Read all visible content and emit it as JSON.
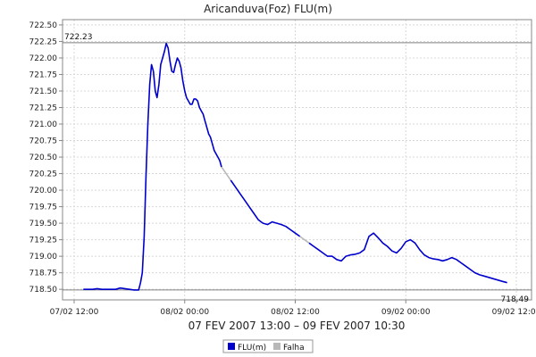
{
  "chart_data": {
    "type": "line",
    "title": "Aricanduva(Foz) FLU(m)",
    "subtitle": "07 FEV 2007 13:00 – 09 FEV 2007 10:30",
    "xlabel": "",
    "ylabel": "",
    "x_ticks": [
      "07/02 12:00",
      "08/02 00:00",
      "08/02 12:00",
      "09/02 00:00",
      "09/02 12:00"
    ],
    "x_tick_hours": [
      0,
      12,
      24,
      36,
      48
    ],
    "xlim_hours": [
      0,
      48
    ],
    "ylim": [
      718.34,
      722.58
    ],
    "y_ticks": [
      718.5,
      718.75,
      719.0,
      719.25,
      719.5,
      719.75,
      720.0,
      720.25,
      720.5,
      720.75,
      721.0,
      721.25,
      721.5,
      721.75,
      722.0,
      722.25,
      722.5
    ],
    "y_tick_labels": [
      "718.50",
      "718.75",
      "719.00",
      "719.25",
      "719.50",
      "719.75",
      "720.00",
      "720.25",
      "720.50",
      "720.75",
      "721.00",
      "721.25",
      "721.50",
      "721.75",
      "722.00",
      "722.25",
      "722.50"
    ],
    "grid": true,
    "legend_position": "bottom",
    "reference_lines": [
      {
        "label": "722.23",
        "value": 722.23,
        "label_side": "left"
      },
      {
        "label": "718.49",
        "value": 718.49,
        "label_side": "right"
      }
    ],
    "series": [
      {
        "name": "FLU(m)",
        "color": "#0000cc",
        "hours": [
          1.0,
          1.5,
          2.0,
          2.5,
          3.0,
          3.5,
          4.0,
          4.5,
          5.0,
          5.5,
          6.0,
          6.5,
          7.0,
          7.2,
          7.4,
          7.6,
          7.8,
          8.0,
          8.2,
          8.4,
          8.6,
          8.8,
          9.0,
          9.2,
          9.4,
          9.6,
          9.8,
          10.0,
          10.2,
          10.4,
          10.6,
          10.8,
          11.0,
          11.2,
          11.4,
          11.6,
          11.8,
          12.0,
          12.2,
          12.4,
          12.6,
          12.8,
          13.0,
          13.2,
          13.4,
          13.6,
          13.8,
          14.0,
          14.2,
          14.4,
          14.6,
          14.8,
          15.0,
          15.2,
          15.4,
          15.6,
          15.8,
          16.0
        ],
        "values": [
          718.5,
          718.5,
          718.5,
          718.51,
          718.5,
          718.5,
          718.5,
          718.5,
          718.52,
          718.51,
          718.5,
          718.49,
          718.49,
          718.6,
          718.75,
          719.3,
          720.2,
          721.0,
          721.6,
          721.9,
          721.8,
          721.5,
          721.4,
          721.6,
          721.9,
          722.0,
          722.1,
          722.22,
          722.15,
          721.95,
          721.8,
          721.78,
          721.9,
          722.0,
          721.95,
          721.85,
          721.65,
          721.5,
          721.4,
          721.35,
          721.3,
          721.3,
          721.38,
          721.38,
          721.35,
          721.25,
          721.2,
          721.15,
          721.05,
          720.95,
          720.85,
          720.8,
          720.7,
          720.6,
          720.55,
          720.5,
          720.45,
          720.35
        ]
      },
      {
        "name": "Falha",
        "color": "#b8b8b8",
        "hours": [
          16.0,
          16.5,
          17.0
        ],
        "values": [
          720.35,
          720.25,
          720.15
        ]
      }
    ],
    "series_more": [
      {
        "name": "FLU(m)",
        "hours": [
          17.0,
          17.5,
          18.0,
          18.5,
          19.0,
          19.5,
          20.0,
          20.5,
          21.0,
          21.5,
          22.0,
          22.5,
          23.0,
          23.5,
          24.0,
          24.5
        ],
        "values": [
          720.15,
          720.05,
          719.95,
          719.85,
          719.75,
          719.65,
          719.55,
          719.5,
          719.48,
          719.52,
          719.5,
          719.48,
          719.45,
          719.4,
          719.35,
          719.3
        ]
      },
      {
        "name": "Falha",
        "hours": [
          24.5,
          25.0,
          25.5
        ],
        "values": [
          719.3,
          719.25,
          719.2
        ]
      },
      {
        "name": "FLU(m)",
        "hours": [
          25.5,
          26.0,
          26.5,
          27.0,
          27.5,
          28.0,
          28.5,
          29.0,
          29.5,
          30.0,
          30.5,
          31.0,
          31.5,
          32.0,
          32.5,
          33.0,
          33.5,
          34.0,
          34.5,
          35.0,
          35.5,
          36.0,
          36.5,
          37.0,
          37.5,
          38.0,
          38.5,
          39.0,
          39.5,
          40.0,
          40.5,
          41.0,
          41.5,
          42.0,
          42.5,
          43.0,
          43.5,
          44.0,
          44.5,
          45.0,
          45.5,
          46.0,
          46.5,
          47.0
        ],
        "values": [
          719.2,
          719.15,
          719.1,
          719.05,
          719.0,
          719.0,
          718.95,
          718.93,
          719.0,
          719.02,
          719.03,
          719.05,
          719.1,
          719.3,
          719.35,
          719.28,
          719.2,
          719.15,
          719.08,
          719.05,
          719.12,
          719.22,
          719.25,
          719.2,
          719.1,
          719.02,
          718.98,
          718.96,
          718.95,
          718.93,
          718.95,
          718.98,
          718.95,
          718.9,
          718.85,
          718.8,
          718.75,
          718.72,
          718.7,
          718.68,
          718.66,
          718.64,
          718.62,
          718.6
        ]
      }
    ],
    "legend": [
      {
        "label": "FLU(m)",
        "color": "#0000cc"
      },
      {
        "label": "Falha",
        "color": "#b8b8b8"
      }
    ]
  }
}
